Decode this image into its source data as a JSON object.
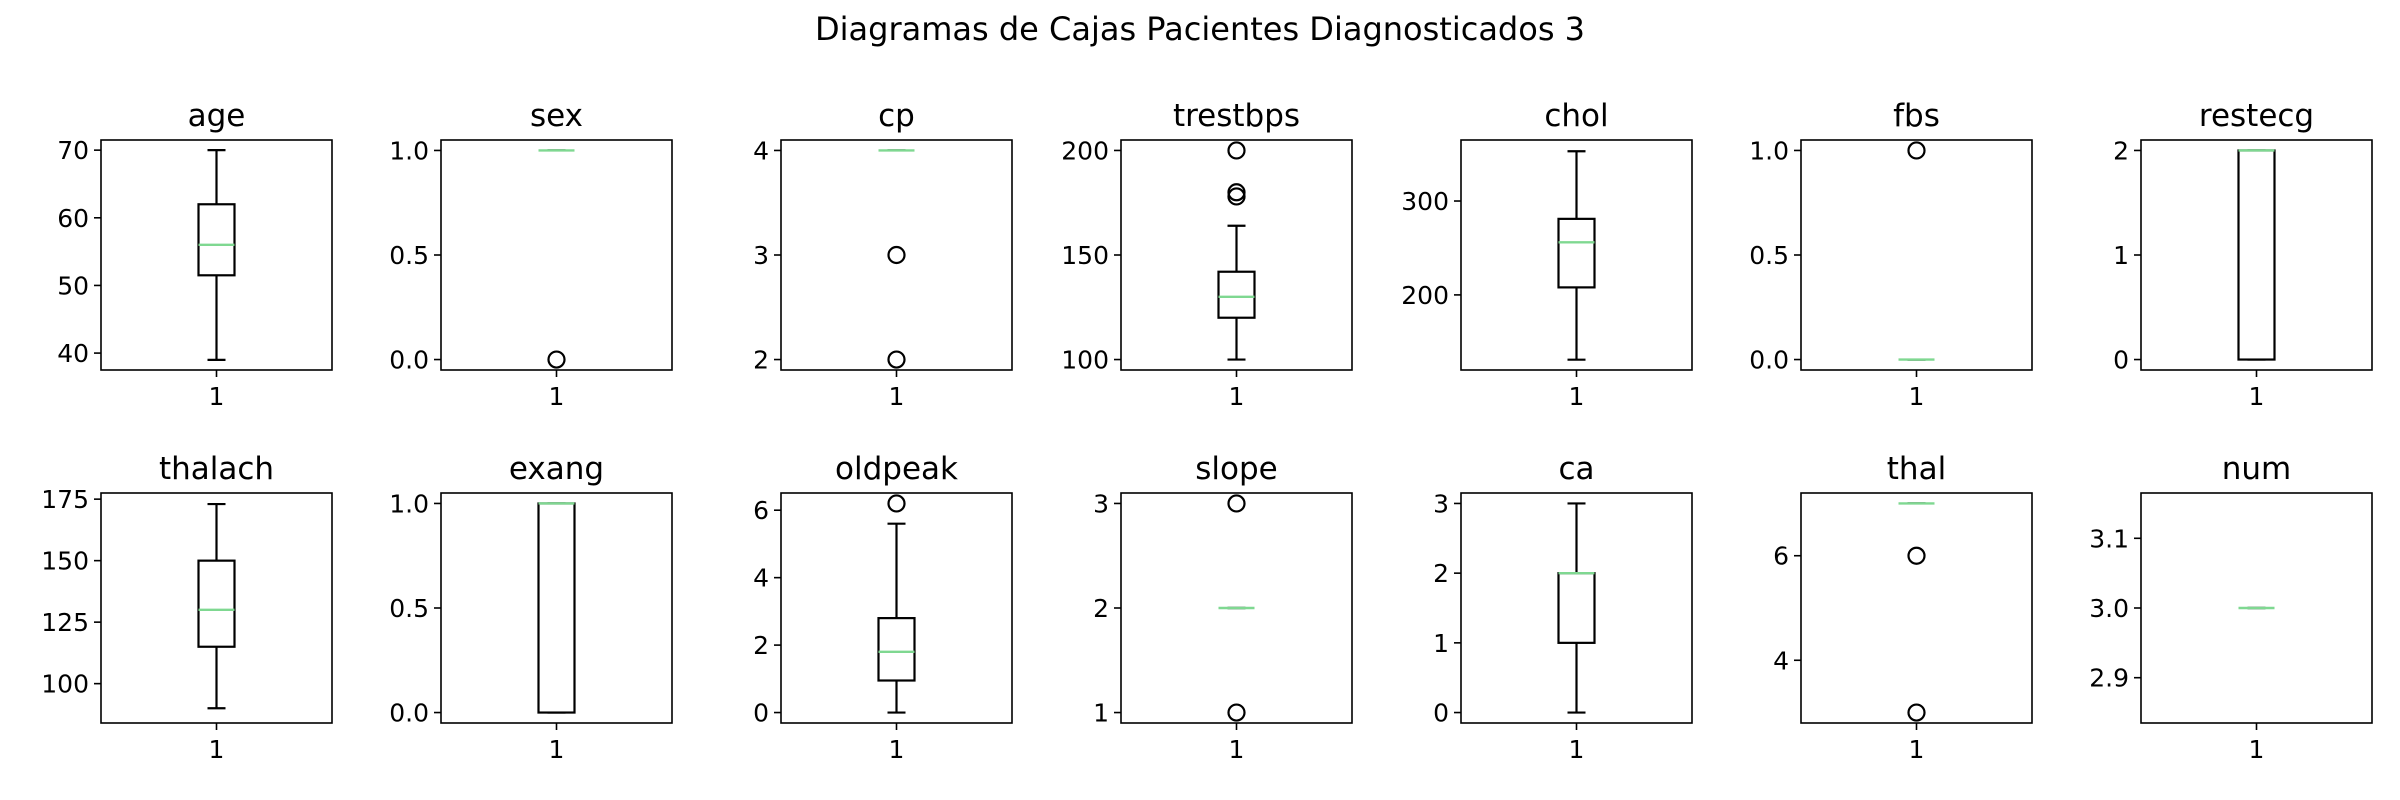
{
  "title": "Diagramas de Cajas Pacientes Diagnosticados 3",
  "colors": {
    "box": "#000000",
    "median": "#7fd891",
    "frame": "#000000",
    "background": "#ffffff"
  },
  "chart_data": [
    {
      "type": "box",
      "title": "age",
      "categories": [
        "1"
      ],
      "ylim": [
        37.5,
        71.5
      ],
      "yticks": [
        {
          "v": 40,
          "l": "40"
        },
        {
          "v": 50,
          "l": "50"
        },
        {
          "v": 60,
          "l": "60"
        },
        {
          "v": 70,
          "l": "70"
        }
      ],
      "box": {
        "whisker_low": 39,
        "q1": 51.5,
        "median": 56,
        "q3": 62,
        "whisker_high": 70
      },
      "outliers": []
    },
    {
      "type": "box",
      "title": "sex",
      "categories": [
        "1"
      ],
      "ylim": [
        -0.05,
        1.05
      ],
      "yticks": [
        {
          "v": 0,
          "l": "0.0"
        },
        {
          "v": 0.5,
          "l": "0.5"
        },
        {
          "v": 1,
          "l": "1.0"
        }
      ],
      "box": {
        "whisker_low": 1,
        "q1": 1,
        "median": 1,
        "q3": 1,
        "whisker_high": 1
      },
      "outliers": [
        0
      ]
    },
    {
      "type": "box",
      "title": "cp",
      "categories": [
        "1"
      ],
      "ylim": [
        1.9,
        4.1
      ],
      "yticks": [
        {
          "v": 2,
          "l": "2"
        },
        {
          "v": 3,
          "l": "3"
        },
        {
          "v": 4,
          "l": "4"
        }
      ],
      "box": {
        "whisker_low": 4,
        "q1": 4,
        "median": 4,
        "q3": 4,
        "whisker_high": 4
      },
      "outliers": [
        3,
        2
      ]
    },
    {
      "type": "box",
      "title": "trestbps",
      "categories": [
        "1"
      ],
      "ylim": [
        95,
        205
      ],
      "yticks": [
        {
          "v": 100,
          "l": "100"
        },
        {
          "v": 150,
          "l": "150"
        },
        {
          "v": 200,
          "l": "200"
        }
      ],
      "box": {
        "whisker_low": 100,
        "q1": 120,
        "median": 130,
        "q3": 142,
        "whisker_high": 164
      },
      "outliers": [
        200,
        180,
        178
      ]
    },
    {
      "type": "box",
      "title": "chol",
      "categories": [
        "1"
      ],
      "ylim": [
        120,
        365
      ],
      "yticks": [
        {
          "v": 200,
          "l": "200"
        },
        {
          "v": 300,
          "l": "300"
        }
      ],
      "box": {
        "whisker_low": 131,
        "q1": 208,
        "median": 256,
        "q3": 281,
        "whisker_high": 353
      },
      "outliers": []
    },
    {
      "type": "box",
      "title": "fbs",
      "categories": [
        "1"
      ],
      "ylim": [
        -0.05,
        1.05
      ],
      "yticks": [
        {
          "v": 0,
          "l": "0.0"
        },
        {
          "v": 0.5,
          "l": "0.5"
        },
        {
          "v": 1,
          "l": "1.0"
        }
      ],
      "box": {
        "whisker_low": 0,
        "q1": 0,
        "median": 0,
        "q3": 0,
        "whisker_high": 0
      },
      "outliers": [
        1
      ]
    },
    {
      "type": "box",
      "title": "restecg",
      "categories": [
        "1"
      ],
      "ylim": [
        -0.1,
        2.1
      ],
      "yticks": [
        {
          "v": 0,
          "l": "0"
        },
        {
          "v": 1,
          "l": "1"
        },
        {
          "v": 2,
          "l": "2"
        }
      ],
      "box": {
        "whisker_low": 0,
        "q1": 0,
        "median": 2,
        "q3": 2,
        "whisker_high": 2
      },
      "outliers": []
    },
    {
      "type": "box",
      "title": "thalach",
      "categories": [
        "1"
      ],
      "ylim": [
        84,
        177.5
      ],
      "yticks": [
        {
          "v": 100,
          "l": "100"
        },
        {
          "v": 125,
          "l": "125"
        },
        {
          "v": 150,
          "l": "150"
        },
        {
          "v": 175,
          "l": "175"
        }
      ],
      "box": {
        "whisker_low": 90,
        "q1": 115,
        "median": 130,
        "q3": 150,
        "whisker_high": 173
      },
      "outliers": []
    },
    {
      "type": "box",
      "title": "exang",
      "categories": [
        "1"
      ],
      "ylim": [
        -0.05,
        1.05
      ],
      "yticks": [
        {
          "v": 0,
          "l": "0.0"
        },
        {
          "v": 0.5,
          "l": "0.5"
        },
        {
          "v": 1,
          "l": "1.0"
        }
      ],
      "box": {
        "whisker_low": 0,
        "q1": 0,
        "median": 1,
        "q3": 1,
        "whisker_high": 1
      },
      "outliers": []
    },
    {
      "type": "box",
      "title": "oldpeak",
      "categories": [
        "1"
      ],
      "ylim": [
        -0.31,
        6.51
      ],
      "yticks": [
        {
          "v": 0,
          "l": "0"
        },
        {
          "v": 2,
          "l": "2"
        },
        {
          "v": 4,
          "l": "4"
        },
        {
          "v": 6,
          "l": "6"
        }
      ],
      "box": {
        "whisker_low": 0,
        "q1": 0.95,
        "median": 1.8,
        "q3": 2.8,
        "whisker_high": 5.6
      },
      "outliers": [
        6.2
      ]
    },
    {
      "type": "box",
      "title": "slope",
      "categories": [
        "1"
      ],
      "ylim": [
        0.9,
        3.1
      ],
      "yticks": [
        {
          "v": 1,
          "l": "1"
        },
        {
          "v": 2,
          "l": "2"
        },
        {
          "v": 3,
          "l": "3"
        }
      ],
      "box": {
        "whisker_low": 2,
        "q1": 2,
        "median": 2,
        "q3": 2,
        "whisker_high": 2
      },
      "outliers": [
        3,
        1
      ]
    },
    {
      "type": "box",
      "title": "ca",
      "categories": [
        "1"
      ],
      "ylim": [
        -0.15,
        3.15
      ],
      "yticks": [
        {
          "v": 0,
          "l": "0"
        },
        {
          "v": 1,
          "l": "1"
        },
        {
          "v": 2,
          "l": "2"
        },
        {
          "v": 3,
          "l": "3"
        }
      ],
      "box": {
        "whisker_low": 0,
        "q1": 1,
        "median": 2,
        "q3": 2,
        "whisker_high": 3
      },
      "outliers": []
    },
    {
      "type": "box",
      "title": "thal",
      "categories": [
        "1"
      ],
      "ylim": [
        2.8,
        7.2
      ],
      "yticks": [
        {
          "v": 4,
          "l": "4"
        },
        {
          "v": 6,
          "l": "6"
        }
      ],
      "box": {
        "whisker_low": 7,
        "q1": 7,
        "median": 7,
        "q3": 7,
        "whisker_high": 7
      },
      "outliers": [
        6,
        3
      ]
    },
    {
      "type": "box",
      "title": "num",
      "categories": [
        "1"
      ],
      "ylim": [
        2.835,
        3.165
      ],
      "yticks": [
        {
          "v": 2.9,
          "l": "2.9"
        },
        {
          "v": 3.0,
          "l": "3.0"
        },
        {
          "v": 3.1,
          "l": "3.1"
        }
      ],
      "box": {
        "whisker_low": 3,
        "q1": 3,
        "median": 3,
        "q3": 3,
        "whisker_high": 3
      },
      "outliers": []
    }
  ]
}
